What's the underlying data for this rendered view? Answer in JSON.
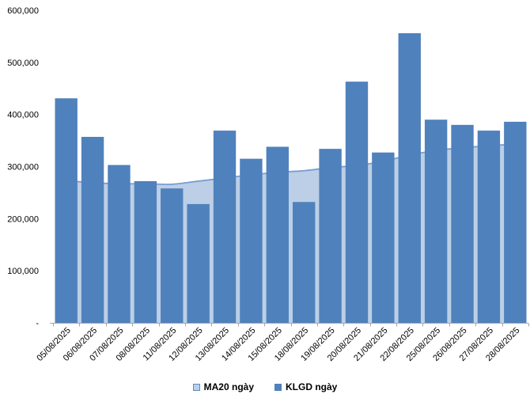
{
  "chart_data": {
    "type": "bar",
    "title": "",
    "xlabel": "",
    "ylabel": "",
    "categories": [
      "05/08/2025",
      "06/08/2025",
      "07/08/2025",
      "08/08/2025",
      "11/08/2025",
      "12/08/2025",
      "13/08/2025",
      "14/08/2025",
      "15/08/2025",
      "18/08/2025",
      "19/08/2025",
      "20/08/2025",
      "21/08/2025",
      "22/08/2025",
      "25/08/2025",
      "26/08/2025",
      "27/08/2025",
      "28/08/2025"
    ],
    "series": [
      {
        "name": "MA20 ngày",
        "kind": "area",
        "values": [
          273000,
          269000,
          267000,
          267000,
          266000,
          272000,
          278000,
          284000,
          289000,
          292000,
          298000,
          302000,
          310000,
          322000,
          331000,
          336000,
          340000,
          343000
        ],
        "fill_color": "#BCCFE6",
        "line_color": "#769ED2"
      },
      {
        "name": "KLGD ngày",
        "kind": "column",
        "values": [
          431000,
          357000,
          303000,
          272000,
          258000,
          228000,
          369000,
          315000,
          338000,
          232000,
          334000,
          463000,
          327000,
          556000,
          390000,
          380000,
          369000,
          386000
        ],
        "color": "#4F81BD"
      }
    ],
    "ylim": [
      0,
      600000
    ],
    "ytick_step": 100000,
    "ytick_labels": [
      "-",
      "100,000",
      "200,000",
      "300,000",
      "400,000",
      "500,000",
      "600,000"
    ],
    "x_label_rotation": -45,
    "grid": false,
    "legend_position": "bottom-center"
  },
  "legend": {
    "items": [
      {
        "label": "MA20 ngày",
        "swatch_fill": "#BCCFE6",
        "swatch_border": "#5E8AC7"
      },
      {
        "label": "KLGD ngày",
        "swatch_fill": "#4F81BD",
        "swatch_border": "#4F81BD"
      }
    ]
  },
  "colors": {
    "bar": "#4F81BD",
    "area_fill": "#BCCFE6",
    "area_line": "#769ED2",
    "axis": "#A6A6A6",
    "text": "#000000",
    "background": "#FFFFFF"
  }
}
